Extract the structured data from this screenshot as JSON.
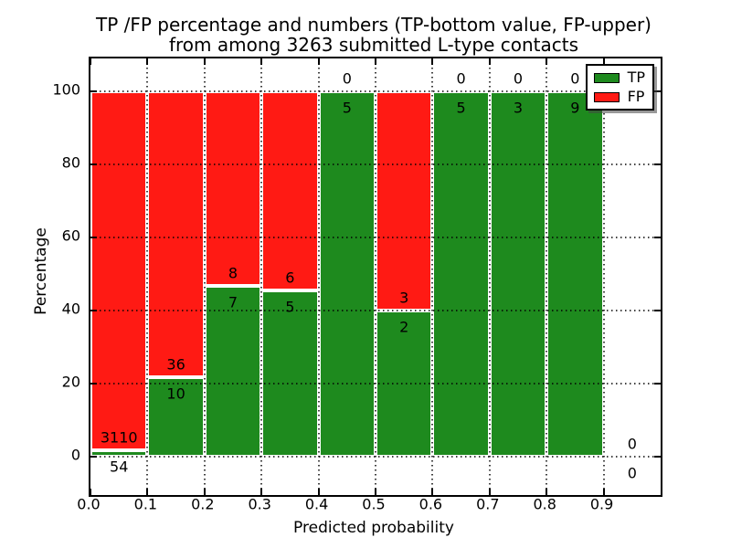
{
  "chart_data": {
    "type": "bar",
    "stacked": true,
    "title_line1": "TP /FP percentage and numbers (TP-bottom value, FP-upper)",
    "title_line2": "from among 3263 submitted L-type contacts",
    "total_submitted": 3263,
    "xlabel": "Predicted probability",
    "ylabel": "Percentage",
    "xlim": [
      0.0,
      1.0
    ],
    "ylim": [
      -10.5,
      109.0
    ],
    "x_ticks": [
      0.0,
      0.1,
      0.2,
      0.3,
      0.4,
      0.5,
      0.6,
      0.7,
      0.8,
      0.9
    ],
    "x_tick_labels": [
      "0.0",
      "0.1",
      "0.2",
      "0.3",
      "0.4",
      "0.5",
      "0.6",
      "0.7",
      "0.8",
      "0.9"
    ],
    "y_ticks": [
      0,
      20,
      40,
      60,
      80,
      100
    ],
    "y_tick_labels": [
      "0",
      "20",
      "40",
      "60",
      "80",
      "100"
    ],
    "grid": "dotted",
    "bin_width": 0.1,
    "bins": [
      {
        "x_start": 0.0,
        "tp": 54,
        "fp": 3110
      },
      {
        "x_start": 0.1,
        "tp": 10,
        "fp": 36
      },
      {
        "x_start": 0.2,
        "tp": 7,
        "fp": 8
      },
      {
        "x_start": 0.3,
        "tp": 5,
        "fp": 6
      },
      {
        "x_start": 0.4,
        "tp": 5,
        "fp": 0
      },
      {
        "x_start": 0.5,
        "tp": 2,
        "fp": 3
      },
      {
        "x_start": 0.6,
        "tp": 5,
        "fp": 0
      },
      {
        "x_start": 0.7,
        "tp": 3,
        "fp": 0
      },
      {
        "x_start": 0.8,
        "tp": 9,
        "fp": 0
      },
      {
        "x_start": 0.9,
        "tp": 0,
        "fp": 0
      }
    ],
    "legend": {
      "position": "upper right",
      "items": [
        {
          "label": "TP",
          "color": "#1e8a1e"
        },
        {
          "label": "FP",
          "color": "#ff1a14"
        }
      ]
    },
    "colors": {
      "tp": "#1e8a1e",
      "fp": "#ff1a14",
      "grid": "#000000",
      "bar_edge": "#ffffff",
      "text": "#000000",
      "background": "#ffffff"
    }
  }
}
